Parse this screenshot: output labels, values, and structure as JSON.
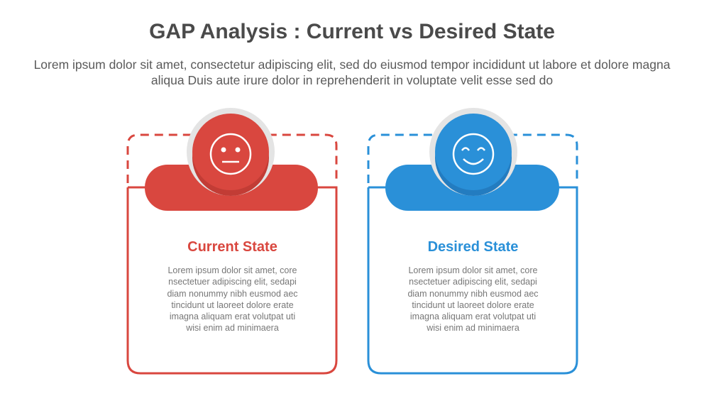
{
  "header": {
    "title": "GAP Analysis : Current vs Desired State",
    "subtitle": "Lorem ipsum dolor sit amet, consectetur adipiscing elit, sed do eiusmod tempor incididunt ut labore et dolore magna aliqua Duis aute irure dolor in reprehenderit in voluptate velit esse sed do"
  },
  "cards": [
    {
      "title": "Current State",
      "body": "Lorem ipsum dolor sit amet, core\nnsectetuer adipiscing elit, sedapi\ndiam nonummy nibh eusmod aec\ntincidunt ut laoreet dolore erate\nimagna aliquam erat volutpat  uti\nwisi enim ad minimaera",
      "icon": "neutral-face-icon",
      "color": "#d9473f"
    },
    {
      "title": "Desired State",
      "body": "Lorem ipsum dolor sit amet, core\nnsectetuer adipiscing elit, sedapi\ndiam nonummy nibh eusmod aec\ntincidunt ut laoreet dolore erate\nimagna aliquam erat volutpat  uti\nwisi enim ad minimaera",
      "icon": "smiling-face-icon",
      "color": "#2a90d8"
    }
  ]
}
